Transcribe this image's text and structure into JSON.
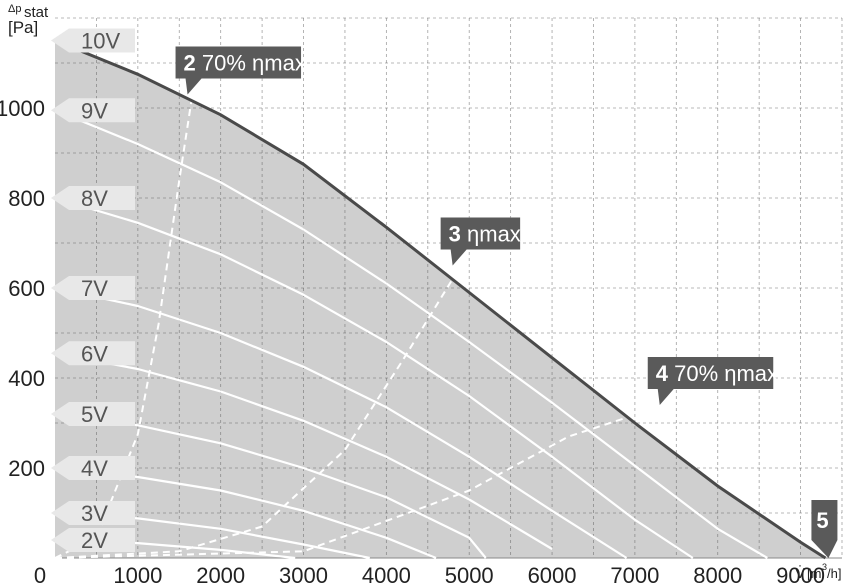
{
  "chart_data": {
    "type": "line",
    "y_axis": {
      "label_symbol": "Δp",
      "label_sub": "stat",
      "unit": "[Pa]"
    },
    "x_axis": {
      "label_symbol": "V̇",
      "unit_prefix": "[m",
      "unit_exp": "3",
      "unit_suffix": "/h]"
    },
    "xlim": [
      0,
      9500
    ],
    "ylim": [
      0,
      1200
    ],
    "x_ticks": [
      0,
      1000,
      2000,
      3000,
      4000,
      5000,
      6000,
      7000,
      8000,
      9000
    ],
    "y_ticks": [
      200,
      400,
      600,
      800,
      1000
    ],
    "y_zero_label": "0",
    "grid": true,
    "colors": {
      "fill": "#cfcfcf",
      "envelope": "#4a4a4a",
      "voltage_curves": "#ffffff",
      "callout_bg": "#5a5a5a",
      "voltage_label_bg": "#e8e8e8"
    },
    "envelope": {
      "x": [
        0,
        1000,
        2000,
        3000,
        4000,
        5000,
        6000,
        7000,
        8000,
        9000,
        9300
      ],
      "y": [
        1150,
        1075,
        985,
        875,
        735,
        590,
        445,
        300,
        160,
        35,
        0
      ]
    },
    "series": [
      {
        "name": "10V",
        "label_y": 1150,
        "x": [
          0,
          1000,
          2000,
          3000,
          4000,
          5000,
          6000,
          7000,
          8000,
          9000,
          9300
        ],
        "y": [
          1150,
          1075,
          985,
          875,
          735,
          590,
          445,
          300,
          160,
          35,
          0
        ]
      },
      {
        "name": "9V",
        "label_y": 995,
        "x": [
          0,
          1000,
          2000,
          3000,
          4000,
          5000,
          6000,
          7000,
          8000,
          8600
        ],
        "y": [
          995,
          920,
          835,
          730,
          610,
          480,
          345,
          205,
          65,
          0
        ]
      },
      {
        "name": "8V",
        "label_y": 800,
        "x": [
          0,
          1000,
          2000,
          3000,
          4000,
          5000,
          6000,
          7000,
          7700
        ],
        "y": [
          800,
          745,
          675,
          585,
          480,
          360,
          225,
          85,
          0
        ]
      },
      {
        "name": "7V",
        "label_y": 600,
        "x": [
          0,
          1000,
          2000,
          3000,
          4000,
          5000,
          6000,
          6900
        ],
        "y": [
          600,
          560,
          500,
          425,
          335,
          225,
          105,
          0
        ]
      },
      {
        "name": "6V",
        "label_y": 455,
        "x": [
          0,
          1000,
          2000,
          3000,
          4000,
          5000,
          6000
        ],
        "y": [
          455,
          420,
          370,
          305,
          225,
          130,
          20
        ]
      },
      {
        "name": "5V",
        "label_y": 320,
        "x": [
          0,
          1000,
          2000,
          3000,
          4000,
          5000,
          5200
        ],
        "y": [
          320,
          295,
          255,
          200,
          135,
          45,
          0
        ]
      },
      {
        "name": "4V",
        "label_y": 200,
        "x": [
          0,
          1000,
          2000,
          3000,
          4000,
          4600
        ],
        "y": [
          200,
          180,
          150,
          105,
          45,
          0
        ]
      },
      {
        "name": "3V",
        "label_y": 100,
        "x": [
          0,
          1000,
          2000,
          3000,
          3800
        ],
        "y": [
          100,
          88,
          65,
          30,
          0
        ]
      },
      {
        "name": "2V",
        "label_y": 40,
        "x": [
          0,
          1000,
          2000,
          2900
        ],
        "y": [
          40,
          33,
          18,
          0
        ]
      }
    ],
    "system_lines": [
      {
        "id": "2",
        "x": [
          0,
          500,
          1000,
          1250,
          1500,
          1650
        ],
        "y": [
          0,
          45,
          275,
          520,
          840,
          1020
        ]
      },
      {
        "id": "3",
        "x": [
          0,
          1500,
          2500,
          3500,
          4200,
          4800
        ],
        "y": [
          0,
          15,
          70,
          240,
          440,
          620
        ]
      },
      {
        "id": "4",
        "x": [
          0,
          3000,
          5000,
          6200,
          7200
        ],
        "y": [
          0,
          15,
          150,
          270,
          330
        ]
      }
    ],
    "callouts": [
      {
        "id": "2",
        "number": "2",
        "text": " 70% ηmax",
        "x": 1600,
        "y": 1030
      },
      {
        "id": "3",
        "number": "3",
        "text": " ηmax",
        "x": 4800,
        "y": 650
      },
      {
        "id": "4",
        "number": "4",
        "text": " 70% ηmax",
        "x": 7300,
        "y": 340
      },
      {
        "id": "5",
        "number": "5",
        "text": "",
        "x": 9300,
        "y": 0
      }
    ]
  }
}
